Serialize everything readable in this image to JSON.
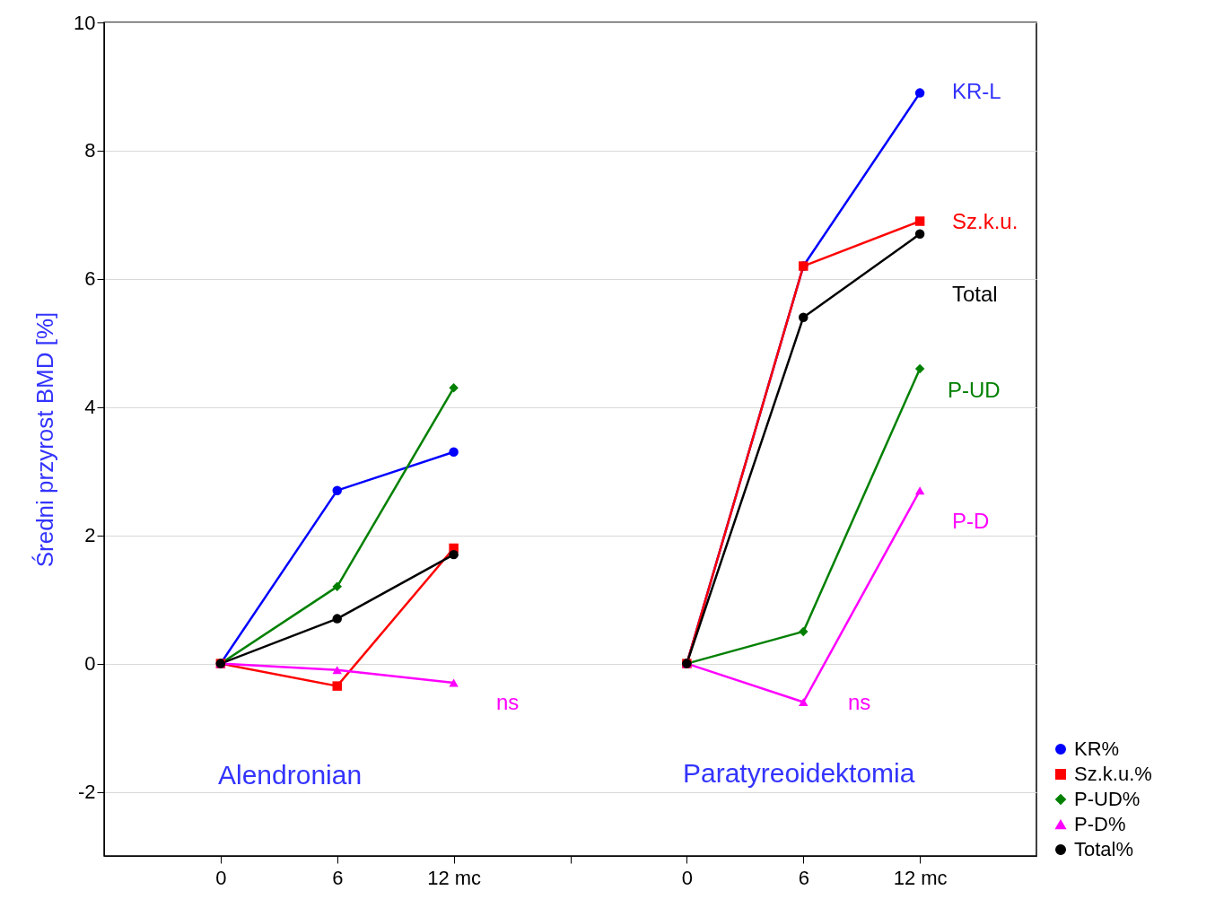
{
  "chart_data": {
    "type": "line",
    "ylabel": "Średni przyrost BMD [%]",
    "categories": [
      "0",
      "6",
      "12 mc",
      null,
      "0",
      "6",
      "12 mc"
    ],
    "ylim": [
      -3,
      10
    ],
    "yticks": [
      -2,
      0,
      2,
      4,
      6,
      8,
      10
    ],
    "grid": "y",
    "legend": "bottom right",
    "series": [
      {
        "name": "KR%",
        "color": "#0000ff",
        "marker": "circle",
        "values": [
          0,
          2.7,
          3.3,
          null,
          0,
          6.2,
          8.9
        ]
      },
      {
        "name": "Sz.k.u.%",
        "color": "#ff0000",
        "marker": "square",
        "values": [
          0,
          -0.35,
          1.8,
          null,
          0,
          6.2,
          6.9
        ]
      },
      {
        "name": "P-UD%",
        "color": "#008000",
        "marker": "diamond",
        "values": [
          0,
          1.2,
          4.3,
          null,
          0,
          0.5,
          4.6
        ]
      },
      {
        "name": "P-D%",
        "color": "#ff00ff",
        "marker": "triangle",
        "values": [
          0,
          -0.1,
          -0.3,
          null,
          0,
          -0.6,
          2.7
        ]
      },
      {
        "name": "Total%",
        "color": "#000000",
        "marker": "circle",
        "values": [
          0,
          0.7,
          1.7,
          null,
          0,
          5.4,
          6.7
        ]
      }
    ],
    "annotations": [
      "KR-L",
      "Sz.k.u.",
      "Total",
      "P-UD",
      "P-D",
      "ns",
      "ns",
      "Alendronian",
      "Paratyreoidektomia"
    ]
  }
}
